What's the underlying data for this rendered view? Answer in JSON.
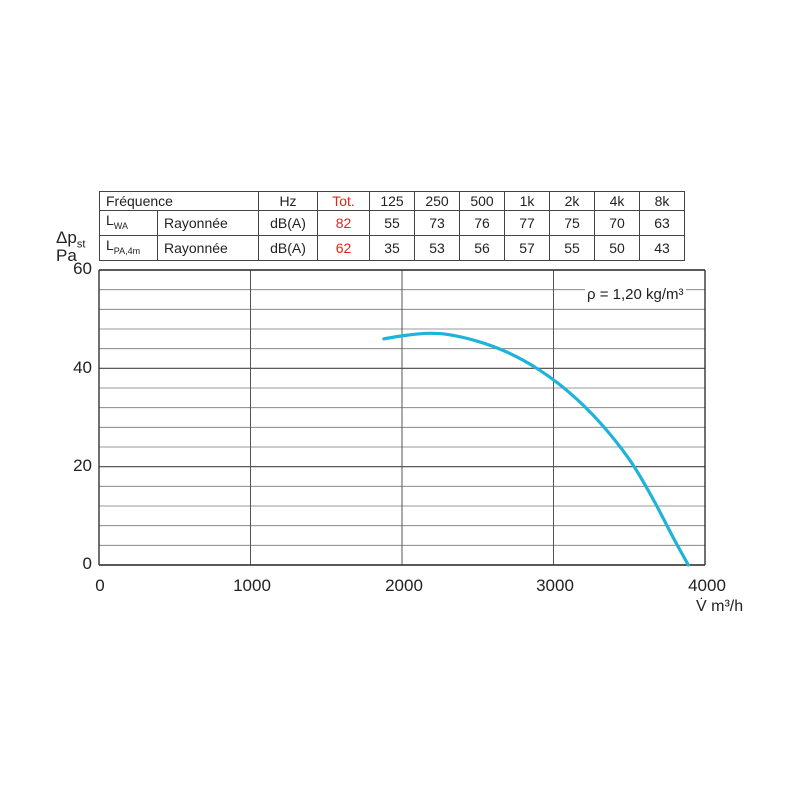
{
  "table": {
    "header": [
      "Fréquence",
      "Hz",
      "Tot.",
      "125",
      "250",
      "500",
      "1k",
      "2k",
      "4k",
      "8k"
    ],
    "rows": [
      {
        "label_main": "L",
        "label_sub": "WA",
        "type": "Rayonnée",
        "unit": "dB(A)",
        "tot": "82",
        "values": [
          "55",
          "73",
          "76",
          "77",
          "75",
          "70",
          "63"
        ]
      },
      {
        "label_main": "L",
        "label_sub": "PA,4m",
        "type": "Rayonnée",
        "unit": "dB(A)",
        "tot": "62",
        "values": [
          "35",
          "53",
          "56",
          "57",
          "55",
          "50",
          "43"
        ]
      }
    ],
    "tot_color": "#e2231a"
  },
  "chart_data": {
    "type": "line",
    "ylabel_main": "Δp",
    "ylabel_sub": "st",
    "ylabel_unit": "Pa",
    "xlabel": "V̇ m³/h",
    "xlim": [
      0,
      4000
    ],
    "ylim": [
      0,
      60
    ],
    "xticks": [
      "0",
      "1000",
      "2000",
      "3000",
      "4000"
    ],
    "yticks": [
      "0",
      "20",
      "40",
      "60"
    ],
    "annotation": "ρ = 1,20 kg/m³",
    "grid": true,
    "series": [
      {
        "color": "#1fb3d9",
        "points": [
          [
            1880,
            46
          ],
          [
            2000,
            46.6
          ],
          [
            2150,
            47.1
          ],
          [
            2300,
            46.9
          ],
          [
            2500,
            45.5
          ],
          [
            2700,
            43.2
          ],
          [
            2900,
            39.8
          ],
          [
            3100,
            35.2
          ],
          [
            3300,
            29.2
          ],
          [
            3500,
            21.5
          ],
          [
            3650,
            13.8
          ],
          [
            3800,
            5
          ],
          [
            3890,
            0
          ]
        ]
      }
    ]
  }
}
